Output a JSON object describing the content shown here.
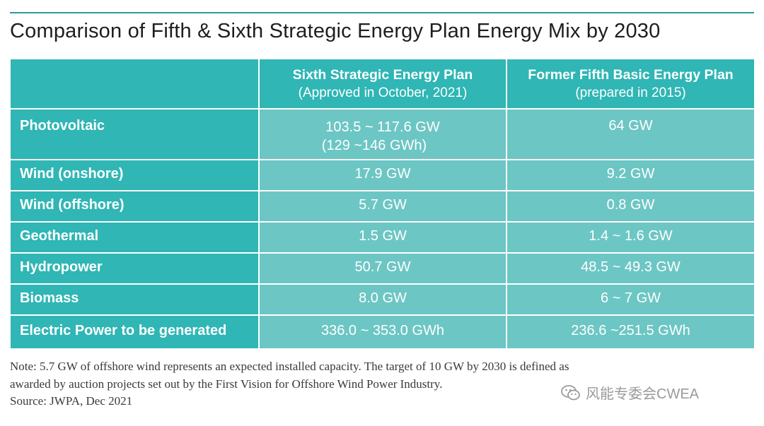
{
  "title": "Comparison of Fifth & Sixth Strategic Energy Plan Energy Mix by 2030",
  "table": {
    "headers": [
      {
        "line1": "",
        "line2": ""
      },
      {
        "line1": "Sixth Strategic Energy Plan",
        "line2": "(Approved in October, 2021)"
      },
      {
        "line1": "Former Fifth Basic Energy Plan",
        "line2": "(prepared in 2015)"
      }
    ],
    "photovoltaic": {
      "label": "Photovoltaic",
      "sixth_line1": "103.5 ~ 117.6 GW",
      "sixth_line2": "(129 ~146 GWh)",
      "fifth": "64 GW"
    },
    "rows": [
      {
        "label": "Wind (onshore)",
        "sixth": "17.9 GW",
        "fifth": "9.2 GW"
      },
      {
        "label": "Wind (offshore)",
        "sixth": "5.7 GW",
        "fifth": "0.8 GW"
      },
      {
        "label": "Geothermal",
        "sixth": "1.5 GW",
        "fifth": "1.4 ~ 1.6 GW"
      },
      {
        "label": "Hydropower",
        "sixth": "50.7 GW",
        "fifth": "48.5 ~ 49.3 GW"
      },
      {
        "label": "Biomass",
        "sixth": "8.0 GW",
        "fifth": "6 ~ 7 GW"
      }
    ],
    "electric": {
      "label": "Electric Power to be generated",
      "sixth": "336.0 ~ 353.0 GWh",
      "fifth": "236.6 ~251.5 GWh"
    }
  },
  "note": {
    "line1": "Note: 5.7 GW of offshore wind represents an expected installed capacity. The target of 10 GW by 2030 is defined as",
    "line2": "awarded by auction projects set out by the First Vision for Offshore Wind Power Industry.",
    "source": "Source: JWPA, Dec 2021"
  },
  "watermark": "风能专委会CWEA",
  "colors": {
    "header": "#2fb6b5",
    "cell": "#6cc6c4",
    "rule": "#2a9aa0"
  }
}
